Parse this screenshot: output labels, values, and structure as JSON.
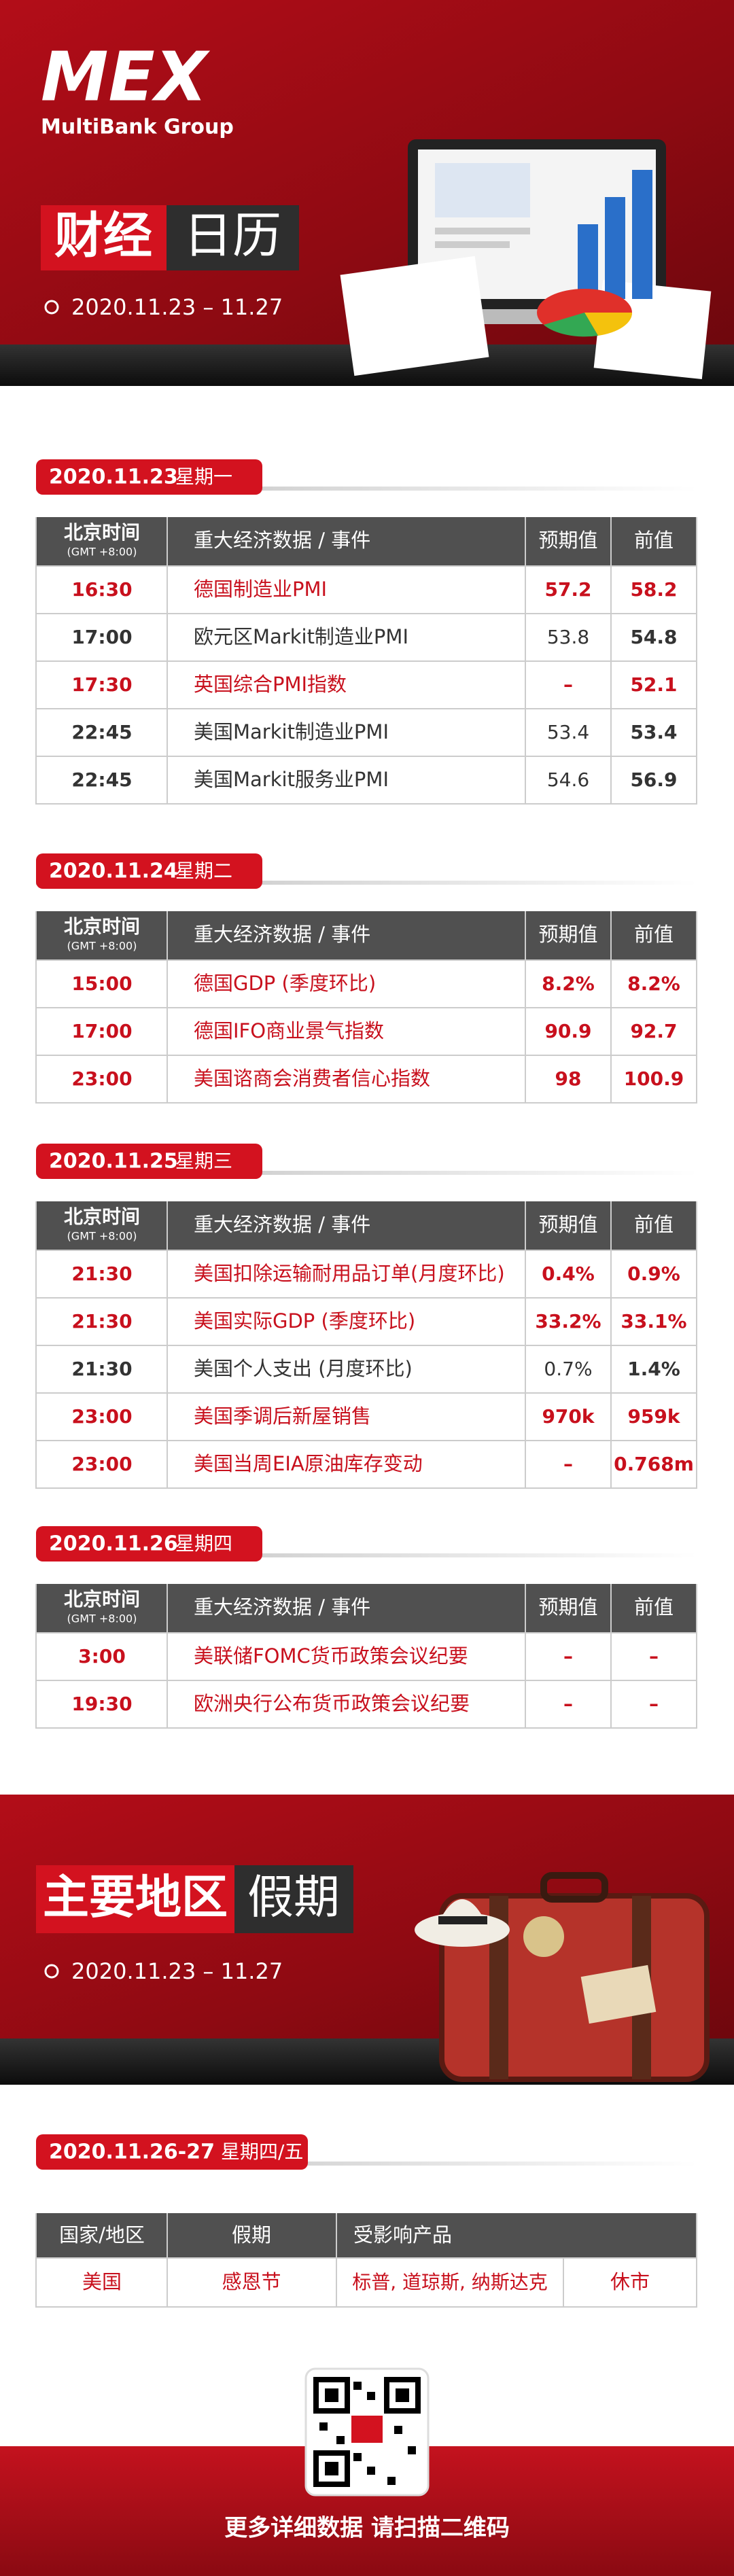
{
  "header": {
    "logo": "MEX",
    "logo_sub": "MultiBank Group",
    "title_part1": "财经",
    "title_part2": "日历",
    "date_range": "2020.11.23 – 11.27"
  },
  "calendar_columns": {
    "time": "北京时间",
    "timezone": "(GMT +8:00)",
    "event": "重大经济数据 / 事件",
    "forecast": "预期值",
    "previous": "前值"
  },
  "days": [
    {
      "date": "2020.11.23",
      "weekday": "星期一",
      "rows": [
        {
          "time": "16:30",
          "event": "德国制造业PMI",
          "forecast": "57.2",
          "previous": "58.2",
          "important": true
        },
        {
          "time": "17:00",
          "event": "欧元区Markit制造业PMI",
          "forecast": "53.8",
          "previous": "54.8",
          "important": false
        },
        {
          "time": "17:30",
          "event": "英国综合PMI指数",
          "forecast": "–",
          "previous": "52.1",
          "important": true
        },
        {
          "time": "22:45",
          "event": "美国Markit制造业PMI",
          "forecast": "53.4",
          "previous": "53.4",
          "important": false
        },
        {
          "time": "22:45",
          "event": "美国Markit服务业PMI",
          "forecast": "54.6",
          "previous": "56.9",
          "important": false
        }
      ]
    },
    {
      "date": "2020.11.24",
      "weekday": "星期二",
      "rows": [
        {
          "time": "15:00",
          "event": "德国GDP (季度环比)",
          "forecast": "8.2%",
          "previous": "8.2%",
          "important": true
        },
        {
          "time": "17:00",
          "event": "德国IFO商业景气指数",
          "forecast": "90.9",
          "previous": "92.7",
          "important": true
        },
        {
          "time": "23:00",
          "event": "美国谘商会消费者信心指数",
          "forecast": "98",
          "previous": "100.9",
          "important": true
        }
      ]
    },
    {
      "date": "2020.11.25",
      "weekday": "星期三",
      "rows": [
        {
          "time": "21:30",
          "event": "美国扣除运输耐用品订单(月度环比)",
          "forecast": "0.4%",
          "previous": "0.9%",
          "important": true
        },
        {
          "time": "21:30",
          "event": "美国实际GDP (季度环比)",
          "forecast": "33.2%",
          "previous": "33.1%",
          "important": true
        },
        {
          "time": "21:30",
          "event": "美国个人支出 (月度环比)",
          "forecast": "0.7%",
          "previous": "1.4%",
          "important": false
        },
        {
          "time": "23:00",
          "event": "美国季调后新屋销售",
          "forecast": "970k",
          "previous": "959k",
          "important": true
        },
        {
          "time": "23:00",
          "event": "美国当周EIA原油库存变动",
          "forecast": "–",
          "previous": "0.768m",
          "important": true
        }
      ]
    },
    {
      "date": "2020.11.26",
      "weekday": "星期四",
      "rows": [
        {
          "time": "3:00",
          "event": "美联储FOMC货币政策会议纪要",
          "forecast": "–",
          "previous": "–",
          "important": true
        },
        {
          "time": "19:30",
          "event": "欧洲央行公布货币政策会议纪要",
          "forecast": "–",
          "previous": "–",
          "important": true
        }
      ]
    }
  ],
  "holiday": {
    "title_part1": "主要地区",
    "title_part2": "假期",
    "date_range": "2020.11.23 – 11.27",
    "date": "2020.11.26-27",
    "weekday": "星期四/五",
    "columns": {
      "region": "国家/地区",
      "holiday": "假期",
      "products": "受影响产品"
    },
    "rows": [
      {
        "region": "美国",
        "holiday": "感恩节",
        "products": "标普, 道琼斯, 纳斯达克",
        "status": "休市"
      }
    ]
  },
  "footer": {
    "text": "更多详细数据 请扫描二维码"
  }
}
